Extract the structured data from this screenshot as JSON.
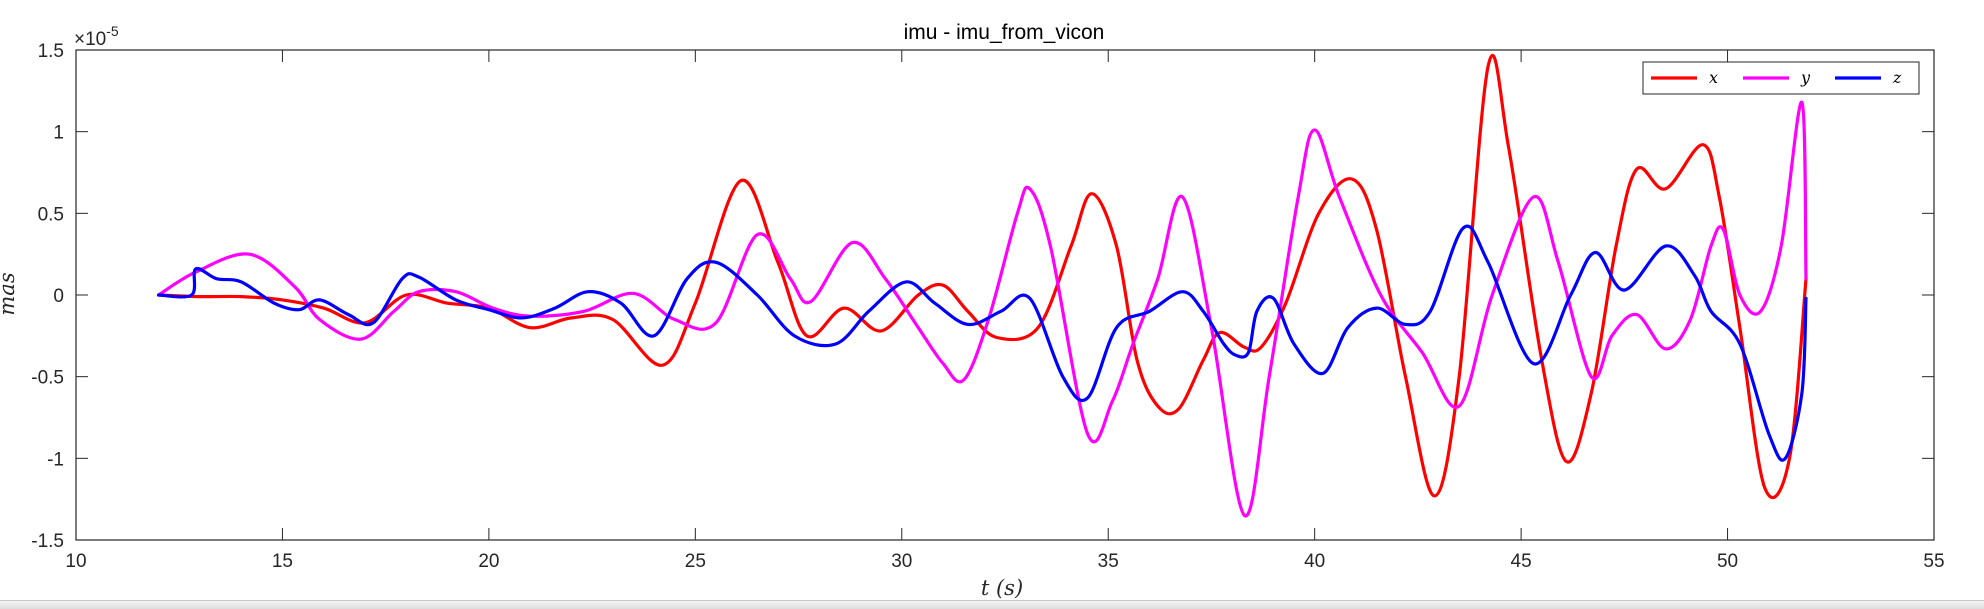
{
  "chart_data": {
    "type": "line",
    "title": "imu - imu_from_vicon",
    "xlabel": "t (s)",
    "ylabel": "mas",
    "y_exponent": "×10",
    "y_exponent_power": "-5",
    "xlim": [
      10,
      55
    ],
    "ylim": [
      -1.5,
      1.5
    ],
    "xticks": [
      "10",
      "15",
      "20",
      "25",
      "30",
      "35",
      "40",
      "45",
      "50",
      "55"
    ],
    "yticks": [
      "1.5",
      "1",
      "0.5",
      "0",
      "-0.5",
      "-1",
      "-1.5"
    ],
    "grid": false,
    "legend_position": "top-right",
    "series": [
      {
        "name": "x",
        "color": "#ff0000",
        "points": [
          [
            12,
            0
          ],
          [
            13,
            -0.01
          ],
          [
            14,
            -0.01
          ],
          [
            15,
            -0.03
          ],
          [
            16,
            -0.08
          ],
          [
            17,
            -0.17
          ],
          [
            18,
            0
          ],
          [
            19,
            -0.05
          ],
          [
            20,
            -0.08
          ],
          [
            21,
            -0.2
          ],
          [
            22,
            -0.14
          ],
          [
            23,
            -0.15
          ],
          [
            24.2,
            -0.43
          ],
          [
            25,
            -0.05
          ],
          [
            26.1,
            0.7
          ],
          [
            27,
            0.2
          ],
          [
            27.7,
            -0.25
          ],
          [
            28.6,
            -0.08
          ],
          [
            29.5,
            -0.22
          ],
          [
            30.4,
            0
          ],
          [
            31,
            0.06
          ],
          [
            31.6,
            -0.1
          ],
          [
            32.3,
            -0.26
          ],
          [
            33.3,
            -0.2
          ],
          [
            34.1,
            0.3
          ],
          [
            34.6,
            0.62
          ],
          [
            35.2,
            0.3
          ],
          [
            35.7,
            -0.4
          ],
          [
            36.2,
            -0.68
          ],
          [
            36.7,
            -0.7
          ],
          [
            37.3,
            -0.4
          ],
          [
            37.7,
            -0.23
          ],
          [
            38.3,
            -0.32
          ],
          [
            38.7,
            -0.32
          ],
          [
            39.3,
            -0.05
          ],
          [
            40.1,
            0.5
          ],
          [
            40.9,
            0.71
          ],
          [
            41.5,
            0.4
          ],
          [
            42.2,
            -0.5
          ],
          [
            42.9,
            -1.23
          ],
          [
            43.5,
            -0.5
          ],
          [
            44.2,
            1.4
          ],
          [
            44.7,
            0.9
          ],
          [
            45.5,
            -0.4
          ],
          [
            46.1,
            -1.02
          ],
          [
            46.7,
            -0.6
          ],
          [
            47.3,
            0.3
          ],
          [
            47.8,
            0.77
          ],
          [
            48.5,
            0.65
          ],
          [
            49.4,
            0.92
          ],
          [
            49.8,
            0.6
          ],
          [
            50.3,
            -0.2
          ],
          [
            50.9,
            -1.18
          ],
          [
            51.5,
            -1
          ],
          [
            51.9,
            0.1
          ]
        ]
      },
      {
        "name": "y",
        "color": "#ff00ff",
        "points": [
          [
            12,
            0
          ],
          [
            12.9,
            0.14
          ],
          [
            14.2,
            0.25
          ],
          [
            15.3,
            0.05
          ],
          [
            15.9,
            -0.15
          ],
          [
            16.9,
            -0.27
          ],
          [
            17.7,
            -0.1
          ],
          [
            18.3,
            0.02
          ],
          [
            19.2,
            0.02
          ],
          [
            20.1,
            -0.08
          ],
          [
            21,
            -0.13
          ],
          [
            22.3,
            -0.1
          ],
          [
            23.5,
            0.01
          ],
          [
            24.5,
            -0.15
          ],
          [
            25.5,
            -0.17
          ],
          [
            26.5,
            0.37
          ],
          [
            27.3,
            0.1
          ],
          [
            27.8,
            -0.04
          ],
          [
            28.8,
            0.32
          ],
          [
            29.6,
            0.1
          ],
          [
            30.4,
            -0.2
          ],
          [
            31,
            -0.42
          ],
          [
            31.5,
            -0.52
          ],
          [
            32.1,
            -0.15
          ],
          [
            32.8,
            0.5
          ],
          [
            33.1,
            0.65
          ],
          [
            33.6,
            0.3
          ],
          [
            34.5,
            -0.85
          ],
          [
            35.1,
            -0.65
          ],
          [
            35.6,
            -0.3
          ],
          [
            36.2,
            0.1
          ],
          [
            36.8,
            0.6
          ],
          [
            37.5,
            -0.2
          ],
          [
            38.3,
            -1.35
          ],
          [
            38.9,
            -0.5
          ],
          [
            39.6,
            0.6
          ],
          [
            40,
            1.01
          ],
          [
            40.6,
            0.6
          ],
          [
            41.6,
            0
          ],
          [
            42.6,
            -0.35
          ],
          [
            43.5,
            -0.68
          ],
          [
            44.3,
            0
          ],
          [
            45.3,
            0.6
          ],
          [
            45.9,
            0.2
          ],
          [
            46.7,
            -0.5
          ],
          [
            47.2,
            -0.25
          ],
          [
            47.8,
            -0.12
          ],
          [
            48.5,
            -0.33
          ],
          [
            49.1,
            -0.15
          ],
          [
            49.6,
            0.3
          ],
          [
            49.9,
            0.4
          ],
          [
            50.3,
            0
          ],
          [
            50.8,
            -0.1
          ],
          [
            51.3,
            0.3
          ],
          [
            51.8,
            1.18
          ],
          [
            51.9,
            0.1
          ]
        ]
      },
      {
        "name": "z",
        "color": "#0000ff",
        "points": [
          [
            12,
            0
          ],
          [
            12.8,
            0
          ],
          [
            12.9,
            0.16
          ],
          [
            13.4,
            0.1
          ],
          [
            14,
            0.08
          ],
          [
            14.8,
            -0.05
          ],
          [
            15.4,
            -0.09
          ],
          [
            15.9,
            -0.03
          ],
          [
            16.6,
            -0.12
          ],
          [
            17.2,
            -0.17
          ],
          [
            17.9,
            0.1
          ],
          [
            18.3,
            0.11
          ],
          [
            19.2,
            -0.03
          ],
          [
            20,
            -0.09
          ],
          [
            20.8,
            -0.14
          ],
          [
            21.6,
            -0.08
          ],
          [
            22.4,
            0.02
          ],
          [
            23.2,
            -0.05
          ],
          [
            24,
            -0.25
          ],
          [
            24.8,
            0.1
          ],
          [
            25.5,
            0.2
          ],
          [
            26.5,
            0
          ],
          [
            27.4,
            -0.25
          ],
          [
            28.4,
            -0.3
          ],
          [
            29.2,
            -0.1
          ],
          [
            30.1,
            0.08
          ],
          [
            30.8,
            -0.05
          ],
          [
            31.6,
            -0.18
          ],
          [
            32.4,
            -0.1
          ],
          [
            33.1,
            -0.02
          ],
          [
            33.9,
            -0.5
          ],
          [
            34.5,
            -0.63
          ],
          [
            35.2,
            -0.2
          ],
          [
            36,
            -0.1
          ],
          [
            36.8,
            0.02
          ],
          [
            37.3,
            -0.1
          ],
          [
            37.8,
            -0.3
          ],
          [
            38.1,
            -0.37
          ],
          [
            38.4,
            -0.35
          ],
          [
            38.6,
            -0.1
          ],
          [
            39,
            -0.02
          ],
          [
            39.5,
            -0.3
          ],
          [
            40.2,
            -0.48
          ],
          [
            40.8,
            -0.2
          ],
          [
            41.5,
            -0.08
          ],
          [
            42.2,
            -0.18
          ],
          [
            42.8,
            -0.1
          ],
          [
            43.6,
            0.41
          ],
          [
            44.2,
            0.2
          ],
          [
            45.3,
            -0.42
          ],
          [
            46.2,
            0
          ],
          [
            46.8,
            0.26
          ],
          [
            47.5,
            0.03
          ],
          [
            48.5,
            0.3
          ],
          [
            49.2,
            0.12
          ],
          [
            49.6,
            -0.1
          ],
          [
            50.3,
            -0.3
          ],
          [
            51,
            -0.85
          ],
          [
            51.4,
            -1
          ],
          [
            51.8,
            -0.6
          ],
          [
            51.9,
            -0.02
          ]
        ]
      }
    ]
  }
}
